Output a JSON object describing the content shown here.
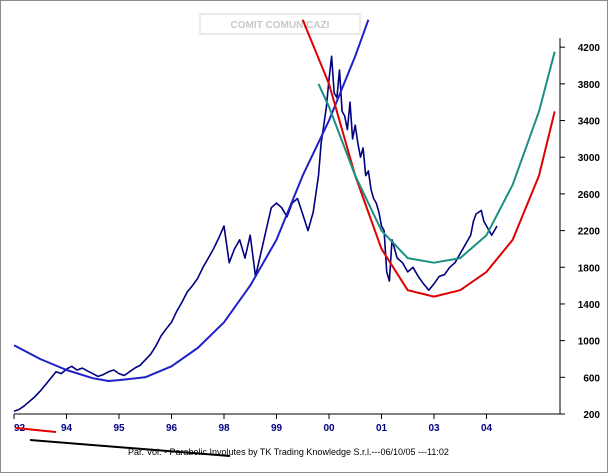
{
  "header": {
    "watermark": "COMIT COMUNICAZI"
  },
  "footer": {
    "credit": "Par. Vol. - Parabolic Involutes by TK Trading Knowledge S.r.l.---06/10/05 ---11:02"
  },
  "chart_data": {
    "type": "line",
    "title": "",
    "xlabel": "",
    "ylabel": "",
    "x_tick_labels": [
      "92",
      "94",
      "95",
      "96",
      "98",
      "99",
      "00",
      "01",
      "03",
      "04"
    ],
    "x_tick_values": [
      1992.0,
      1993.0,
      1994.0,
      1995.0,
      1996.0,
      1997.0,
      1998.0,
      1999.0,
      2000.0,
      2001.0
    ],
    "xlim": [
      1992.0,
      2002.4
    ],
    "y_ticks": [
      200,
      600,
      1000,
      1400,
      1800,
      2200,
      2600,
      3000,
      3400,
      3800,
      4200
    ],
    "ylim": [
      200,
      4300
    ],
    "y_axis_side": "right",
    "grid": false,
    "colors": {
      "price": "#000080",
      "blue_parabola": "#2020c8",
      "red_parabola": "#e00000",
      "teal_parabola": "#1a9080"
    },
    "series": [
      {
        "x": [
          1992.0,
          1992.1,
          1992.2,
          1992.3,
          1992.4,
          1992.5,
          1992.6,
          1992.7,
          1992.8,
          1992.9,
          1993.0,
          1993.1,
          1993.2,
          1993.3,
          1993.4,
          1993.5,
          1993.6,
          1993.7,
          1993.8,
          1993.9,
          1994.0,
          1994.1,
          1994.2,
          1994.3,
          1994.4,
          1994.5,
          1994.6,
          1994.7,
          1994.8,
          1994.9,
          1995.0,
          1995.1,
          1995.2,
          1995.3,
          1995.4,
          1995.5,
          1995.6,
          1995.7,
          1995.8,
          1995.9,
          1996.0,
          1996.1,
          1996.2,
          1996.3,
          1996.4,
          1996.5,
          1996.6,
          1996.7,
          1996.8,
          1996.9,
          1997.0,
          1997.1,
          1997.2,
          1997.3,
          1997.4,
          1997.5,
          1997.6,
          1997.7,
          1997.8,
          1997.85,
          1997.9,
          1997.95,
          1998.0,
          1998.05,
          1998.1,
          1998.15,
          1998.2,
          1998.25,
          1998.3,
          1998.35,
          1998.4,
          1998.45,
          1998.5,
          1998.55,
          1998.6,
          1998.65,
          1998.7,
          1998.75,
          1998.8,
          1998.85,
          1998.9,
          1998.95,
          1999.0,
          1999.05,
          1999.1,
          1999.15,
          1999.2,
          1999.25,
          1999.3,
          1999.4,
          1999.5,
          1999.6,
          1999.7,
          1999.8,
          1999.9,
          2000.0,
          2000.1,
          2000.2,
          2000.3,
          2000.4,
          2000.5,
          2000.6,
          2000.7,
          2000.75,
          2000.8,
          2000.9,
          2000.95,
          2001.0,
          2001.05,
          2001.1,
          2001.15,
          2001.2
        ],
        "values": [
          230,
          250,
          290,
          340,
          390,
          450,
          520,
          590,
          660,
          640,
          690,
          720,
          680,
          700,
          670,
          640,
          610,
          630,
          660,
          680,
          640,
          620,
          660,
          700,
          730,
          790,
          850,
          940,
          1050,
          1130,
          1200,
          1320,
          1420,
          1530,
          1600,
          1680,
          1800,
          1900,
          2000,
          2120,
          2250,
          1850,
          2000,
          2100,
          1900,
          2150,
          1700,
          1950,
          2200,
          2450,
          2500,
          2450,
          2350,
          2500,
          2550,
          2380,
          2200,
          2400,
          2800,
          3150,
          3350,
          3550,
          3850,
          4100,
          3700,
          3650,
          3950,
          3500,
          3450,
          3300,
          3600,
          3200,
          3350,
          3150,
          3000,
          3100,
          2800,
          2850,
          2650,
          2550,
          2500,
          2400,
          2250,
          2200,
          1750,
          1650,
          2100,
          2000,
          1900,
          1850,
          1750,
          1800,
          1700,
          1620,
          1550,
          1620,
          1700,
          1720,
          1800,
          1850,
          1950,
          2050,
          2150,
          2300,
          2380,
          2420,
          2300,
          2250,
          2200,
          2150,
          2200,
          2250
        ]
      },
      {
        "x": [
          1992.0,
          1992.5,
          1993.0,
          1993.5,
          1993.8,
          1994.0,
          1994.5,
          1995.0,
          1995.5,
          1996.0,
          1996.5,
          1997.0,
          1997.5,
          1998.0,
          1998.5,
          1998.75
        ],
        "values": [
          950,
          800,
          680,
          590,
          560,
          570,
          600,
          720,
          920,
          1200,
          1600,
          2100,
          2800,
          3400,
          4100,
          4500
        ]
      },
      {
        "x": [
          1997.5,
          1998.0,
          1998.5,
          1999.0,
          1999.5,
          2000.0,
          2000.5,
          2001.0,
          2001.5,
          2002.0,
          2002.3
        ],
        "values": [
          4500,
          3800,
          2800,
          2000,
          1550,
          1480,
          1550,
          1750,
          2100,
          2800,
          3500
        ]
      },
      {
        "x": [
          1997.8,
          1998.0,
          1998.5,
          1999.0,
          1999.5,
          2000.0,
          2000.5,
          2001.0,
          2001.5,
          2002.0,
          2002.3
        ],
        "values": [
          3800,
          3550,
          2800,
          2200,
          1900,
          1850,
          1900,
          2150,
          2700,
          3500,
          4150
        ]
      }
    ],
    "annotations": [
      "COMIT COMUNICAZI",
      "Par. Vol. - Parabolic Involutes by TK Trading Knowledge S.r.l.---06/10/05 ---11:02"
    ]
  }
}
